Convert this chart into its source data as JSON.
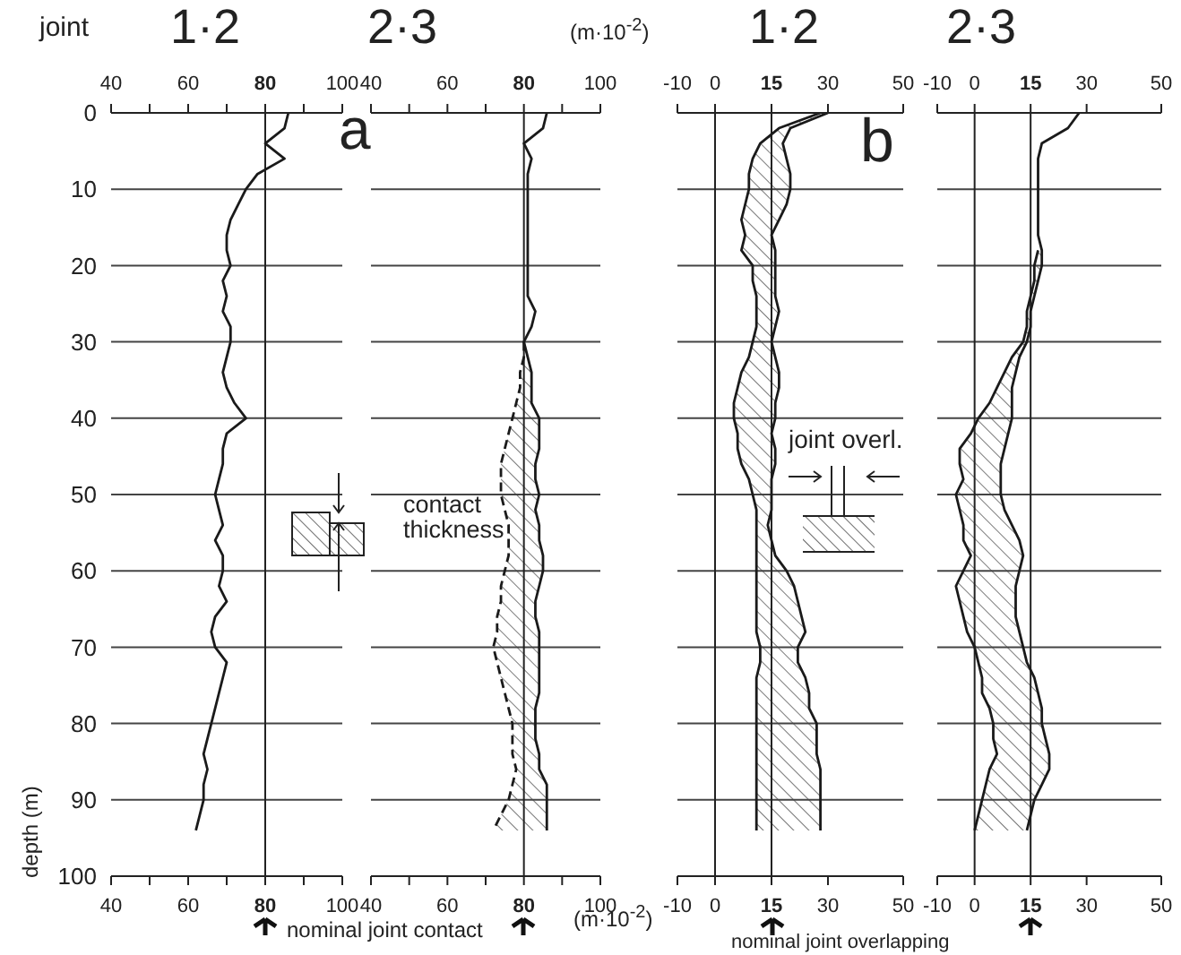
{
  "chart_data": [
    {
      "type": "line",
      "title": "1·2",
      "ylabel": "depth (m)",
      "annotations": [
        "joint"
      ],
      "orientation": "horizontal",
      "x": [
        0,
        2,
        4,
        6,
        8,
        10,
        12,
        14,
        16,
        18,
        20,
        22,
        24,
        26,
        28,
        30,
        32,
        34,
        36,
        38,
        40,
        42,
        44,
        46,
        48,
        50,
        52,
        54,
        56,
        58,
        60,
        62,
        64,
        66,
        68,
        70,
        72,
        74,
        76,
        78,
        80,
        82,
        84,
        86,
        88,
        90,
        92,
        94
      ],
      "series": [
        {
          "color": "#1a1a1a",
          "values": [
            86,
            85,
            80,
            85,
            78,
            75,
            73,
            71,
            70,
            70,
            71,
            69,
            70,
            69,
            71,
            71,
            70,
            69,
            70,
            72,
            75,
            70,
            69,
            69,
            68,
            67,
            68,
            69,
            67,
            69,
            69,
            68,
            70,
            67,
            66,
            67,
            70,
            69,
            68,
            67,
            66,
            65,
            64,
            65,
            64,
            64,
            63,
            62
          ]
        }
      ],
      "xlim": [
        40,
        100
      ],
      "xticks": [
        40,
        {
          "value": 50,
          "label": null
        },
        60,
        {
          "value": 70,
          "label": null
        },
        80,
        {
          "value": 90,
          "label": null
        },
        100
      ],
      "x2lim": [
        40,
        100
      ],
      "x2ticks": [
        40,
        {
          "value": 50,
          "label": null
        },
        60,
        {
          "value": 70,
          "label": null
        },
        80,
        {
          "value": 90,
          "label": null
        },
        100
      ],
      "ylim": [
        100,
        0
      ],
      "yticks": [
        0,
        10,
        20,
        30,
        40,
        50,
        60,
        70,
        80,
        90,
        100
      ],
      "ref_lines": [
        {
          "axis": "x",
          "value": 80
        }
      ],
      "grid": "y"
    },
    {
      "type": "line",
      "title": "2·3",
      "annotations": [
        "a",
        "contact thickness",
        "(m·10$^{-2}$)",
        "(m·10$^{-2}$)",
        "nominal joint contact"
      ],
      "orientation": "horizontal",
      "x": [
        0,
        2,
        4,
        6,
        8,
        10,
        12,
        14,
        16,
        18,
        20,
        22,
        24,
        26,
        28,
        30,
        32,
        34,
        36,
        38,
        40,
        42,
        44,
        46,
        48,
        50,
        52,
        54,
        56,
        58,
        60,
        62,
        64,
        66,
        68,
        70,
        72,
        74,
        76,
        78,
        80,
        82,
        84,
        86,
        88,
        90,
        92,
        94
      ],
      "series": [
        {
          "color": "#1a1a1a",
          "values": [
            86,
            85,
            80,
            82,
            81,
            81,
            81,
            81,
            81,
            81,
            81,
            81,
            81,
            83,
            82,
            80,
            81,
            82,
            82,
            82,
            84,
            84,
            84,
            83,
            83,
            84,
            83,
            84,
            84,
            85,
            85,
            84,
            83,
            83,
            84,
            84,
            84,
            84,
            84,
            83,
            83,
            83,
            84,
            84,
            86,
            86,
            86,
            86
          ],
          "upper": [
            null,
            null,
            null,
            null,
            null,
            null,
            null,
            null,
            null,
            null,
            null,
            null,
            null,
            null,
            null,
            80,
            81,
            82,
            82,
            82,
            84,
            84,
            84,
            83,
            83,
            84,
            83,
            84,
            84,
            85,
            85,
            84,
            83,
            83,
            84,
            84,
            84,
            84,
            84,
            83,
            83,
            83,
            84,
            84,
            86,
            86,
            86,
            86
          ],
          "lower": [
            null,
            null,
            null,
            null,
            null,
            null,
            null,
            null,
            null,
            null,
            null,
            null,
            null,
            null,
            null,
            80,
            80,
            79,
            79,
            78,
            77,
            76,
            75,
            74,
            74,
            74,
            75,
            76,
            76,
            76,
            75,
            74,
            74,
            73,
            73,
            72,
            73,
            74,
            75,
            76,
            77,
            77,
            77,
            78,
            77,
            76,
            74,
            72
          ]
        },
        {
          "color": "#1a1a1a",
          "line_style": "dashed",
          "values": [
            null,
            null,
            null,
            null,
            null,
            null,
            null,
            null,
            null,
            null,
            null,
            null,
            null,
            null,
            null,
            80,
            80,
            79,
            79,
            78,
            77,
            76,
            75,
            74,
            74,
            74,
            75,
            76,
            76,
            76,
            75,
            74,
            74,
            73,
            73,
            72,
            73,
            74,
            75,
            76,
            77,
            77,
            77,
            78,
            77,
            76,
            74,
            72
          ]
        }
      ],
      "xlim": [
        40,
        100
      ],
      "xticks": [
        40,
        {
          "value": 50,
          "label": null
        },
        60,
        {
          "value": 70,
          "label": null
        },
        80,
        {
          "value": 90,
          "label": null
        },
        100
      ],
      "x2lim": [
        40,
        100
      ],
      "x2ticks": [
        40,
        {
          "value": 50,
          "label": null
        },
        60,
        {
          "value": 70,
          "label": null
        },
        80,
        {
          "value": 90,
          "label": null
        },
        100
      ],
      "ylim": [
        100,
        0
      ],
      "yticks": [
        0,
        10,
        20,
        30,
        40,
        50,
        60,
        70,
        80,
        90,
        100
      ],
      "tick_labels": "x",
      "ref_lines": [
        {
          "axis": "x",
          "value": 80
        }
      ],
      "grid": "y"
    },
    {
      "type": "line",
      "title": "1·2",
      "annotations": [
        "b",
        "joint overl.",
        "nominal joint overlapping"
      ],
      "orientation": "horizontal",
      "x": [
        0,
        2,
        4,
        6,
        8,
        10,
        12,
        14,
        16,
        18,
        20,
        22,
        24,
        26,
        28,
        30,
        32,
        34,
        36,
        38,
        40,
        42,
        44,
        46,
        48,
        50,
        52,
        54,
        56,
        58,
        60,
        62,
        64,
        66,
        68,
        70,
        72,
        74,
        76,
        78,
        80,
        82,
        84,
        86,
        88,
        90,
        92,
        94
      ],
      "series": [
        {
          "color": "#1a1a1a",
          "values": [
            30,
            20,
            18,
            19,
            20,
            20,
            19,
            17,
            15,
            16,
            16,
            16,
            16,
            17,
            16,
            15,
            16,
            17,
            17,
            16,
            16,
            15,
            16,
            16,
            15,
            15,
            15,
            14,
            15,
            16,
            19,
            21,
            22,
            23,
            24,
            22,
            22,
            24,
            25,
            25,
            27,
            27,
            27,
            28,
            28,
            28,
            28,
            28
          ],
          "upper": [
            30,
            20,
            18,
            19,
            20,
            20,
            19,
            17,
            15,
            16,
            16,
            16,
            16,
            17,
            16,
            15,
            16,
            17,
            17,
            16,
            16,
            15,
            16,
            16,
            15,
            15,
            15,
            14,
            15,
            16,
            19,
            21,
            22,
            23,
            24,
            22,
            22,
            24,
            25,
            25,
            27,
            27,
            27,
            28,
            28,
            28,
            28,
            28
          ],
          "lower": [
            28,
            17,
            12,
            10,
            9,
            9,
            8,
            7,
            8,
            7,
            10,
            10,
            11,
            11,
            11,
            10,
            9,
            7,
            6,
            5,
            5,
            6,
            6,
            7,
            9,
            10,
            11,
            11,
            11,
            11,
            11,
            11,
            11,
            11,
            11,
            12,
            12,
            11,
            11,
            11,
            11,
            11,
            11,
            11,
            11,
            11,
            11,
            11
          ]
        },
        {
          "color": "#1a1a1a",
          "values": [
            28,
            17,
            12,
            10,
            9,
            9,
            8,
            7,
            8,
            7,
            10,
            10,
            11,
            11,
            11,
            10,
            9,
            7,
            6,
            5,
            5,
            6,
            6,
            7,
            9,
            10,
            11,
            11,
            11,
            11,
            11,
            11,
            11,
            11,
            11,
            12,
            12,
            11,
            11,
            11,
            11,
            11,
            11,
            11,
            11,
            11,
            11,
            11
          ]
        }
      ],
      "xlim": [
        -10,
        50
      ],
      "xticks": [
        -10,
        0,
        15,
        30,
        50
      ],
      "x2lim": [
        -10,
        50
      ],
      "x2ticks": [
        -10,
        0,
        15,
        30,
        50
      ],
      "ylim": [
        100,
        0
      ],
      "yticks": [
        0,
        10,
        20,
        30,
        40,
        50,
        60,
        70,
        80,
        90,
        100
      ],
      "tick_labels": "x",
      "ref_lines": [
        {
          "axis": "x",
          "value": 0
        },
        {
          "axis": "x",
          "value": 15
        }
      ],
      "grid": "y"
    },
    {
      "type": "line",
      "title": "2·3",
      "orientation": "horizontal",
      "x": [
        0,
        2,
        4,
        6,
        8,
        10,
        12,
        14,
        16,
        18,
        20,
        22,
        24,
        26,
        28,
        30,
        32,
        34,
        36,
        38,
        40,
        42,
        44,
        46,
        48,
        50,
        52,
        54,
        56,
        58,
        60,
        62,
        64,
        66,
        68,
        70,
        72,
        74,
        76,
        78,
        80,
        82,
        84,
        86,
        88,
        90,
        92,
        94
      ],
      "series": [
        {
          "color": "#1a1a1a",
          "values": [
            28,
            25,
            18,
            17,
            17,
            17,
            17,
            17,
            17,
            18,
            18,
            17,
            16,
            15,
            15,
            14,
            12,
            11,
            10,
            10,
            10,
            9,
            8,
            7,
            7,
            7,
            8,
            10,
            12,
            13,
            12,
            11,
            11,
            11,
            12,
            13,
            14,
            16,
            17,
            18,
            18,
            19,
            20,
            20,
            18,
            16,
            15,
            14
          ],
          "upper": [
            null,
            null,
            null,
            null,
            null,
            null,
            null,
            null,
            null,
            18,
            18,
            17,
            16,
            15,
            15,
            14,
            12,
            11,
            10,
            10,
            10,
            9,
            8,
            7,
            7,
            7,
            8,
            10,
            12,
            13,
            12,
            11,
            11,
            11,
            12,
            13,
            14,
            16,
            17,
            18,
            18,
            19,
            20,
            20,
            18,
            16,
            15,
            14
          ],
          "lower": [
            null,
            null,
            null,
            null,
            null,
            null,
            null,
            null,
            null,
            17,
            16,
            16,
            15,
            14,
            14,
            13,
            10,
            8,
            6,
            4,
            1,
            -1,
            -4,
            -4,
            -3,
            -5,
            -4,
            -3,
            -3,
            -1,
            -3,
            -5,
            -4,
            -3,
            -2,
            0,
            1,
            2,
            2,
            4,
            5,
            5,
            6,
            4,
            3,
            2,
            1,
            0
          ]
        },
        {
          "color": "#1a1a1a",
          "values": [
            null,
            null,
            null,
            null,
            null,
            null,
            null,
            null,
            null,
            17,
            16,
            16,
            15,
            14,
            14,
            13,
            10,
            8,
            6,
            4,
            1,
            -1,
            -4,
            -4,
            -3,
            -5,
            -4,
            -3,
            -3,
            -1,
            -3,
            -5,
            -4,
            -3,
            -2,
            0,
            1,
            2,
            2,
            4,
            5,
            5,
            6,
            4,
            3,
            2,
            1,
            0
          ]
        }
      ],
      "xlim": [
        -10,
        50
      ],
      "xticks": [
        -10,
        0,
        15,
        30,
        50
      ],
      "x2lim": [
        -10,
        50
      ],
      "x2ticks": [
        -10,
        0,
        15,
        30,
        50
      ],
      "ylim": [
        100,
        0
      ],
      "yticks": [
        0,
        10,
        20,
        30,
        40,
        50,
        60,
        70,
        80,
        90,
        100
      ],
      "tick_labels": "x",
      "ref_lines": [
        {
          "axis": "x",
          "value": 0
        },
        {
          "axis": "x",
          "value": 15
        }
      ],
      "grid": "y"
    }
  ]
}
